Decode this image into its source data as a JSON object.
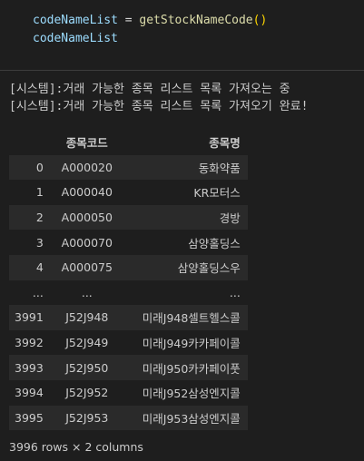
{
  "code": {
    "line1": {
      "var": "codeNameList",
      "op": " = ",
      "fn": "getStockNameCode",
      "parens": "()"
    },
    "line2": {
      "var": "codeNameList"
    }
  },
  "output": {
    "lines": [
      "[시스템]:거래 가능한 종목 리스트 목록 가져오는 중",
      "[시스템]:거래 가능한 종목 리스트 목록 가져오기 완료!"
    ]
  },
  "dataframe": {
    "columns": [
      "종목코드",
      "종목명"
    ],
    "rows": [
      {
        "index": "0",
        "code": "A000020",
        "name": "동화약품"
      },
      {
        "index": "1",
        "code": "A000040",
        "name": "KR모터스"
      },
      {
        "index": "2",
        "code": "A000050",
        "name": "경방"
      },
      {
        "index": "3",
        "code": "A000070",
        "name": "삼양홀딩스"
      },
      {
        "index": "4",
        "code": "A000075",
        "name": "삼양홀딩스우"
      },
      {
        "index": "...",
        "code": "...",
        "name": "..."
      },
      {
        "index": "3991",
        "code": "J52J948",
        "name": "미래J948셀트헬스콜"
      },
      {
        "index": "3992",
        "code": "J52J949",
        "name": "미래J949카카페이콜"
      },
      {
        "index": "3993",
        "code": "J52J950",
        "name": "미래J950카카페이풋"
      },
      {
        "index": "3994",
        "code": "J52J952",
        "name": "미래J952삼성엔지콜"
      },
      {
        "index": "3995",
        "code": "J52J953",
        "name": "미래J953삼성엔지콜"
      }
    ],
    "shape": "3996 rows × 2 columns"
  },
  "colors": {
    "background": "#1e1e1e",
    "row_stripe": "#2a2a2a",
    "variable": "#9cdcfe",
    "function": "#dcdcaa",
    "bracket": "#ffd700"
  }
}
